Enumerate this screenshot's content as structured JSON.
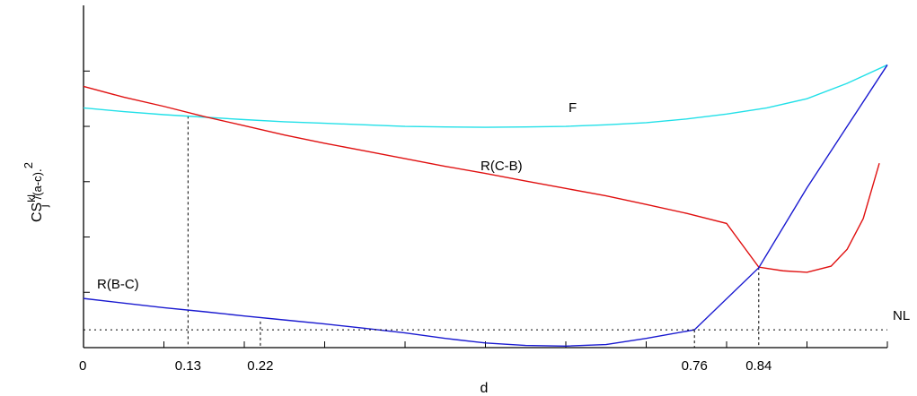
{
  "chart_data": {
    "type": "line",
    "title": "",
    "xlabel": "d",
    "ylabel": {
      "base": "CS",
      "superscript": "kl",
      "subscript": "j",
      "suffix": "/(a-c)",
      "exponent": "2",
      "dot": "."
    },
    "xlim": [
      0,
      1
    ],
    "ylim": [
      0,
      1
    ],
    "grid": false,
    "x_tick_positions": [
      0,
      0.1,
      0.2,
      0.3,
      0.4,
      0.5,
      0.6,
      0.7,
      0.8,
      0.9,
      1.0
    ],
    "x_tick_labels": [
      {
        "x": 0,
        "label": "0"
      },
      {
        "x": 0.13,
        "label": "0.13"
      },
      {
        "x": 0.22,
        "label": "0.22"
      },
      {
        "x": 0.76,
        "label": "0.76"
      },
      {
        "x": 0.84,
        "label": "0.84"
      }
    ],
    "y_tick_positions": [
      0.18,
      0.36,
      0.54,
      0.72,
      0.9
    ],
    "series": [
      {
        "name": "F",
        "color": "#22e0e8",
        "x": [
          0,
          0.05,
          0.1,
          0.15,
          0.2,
          0.25,
          0.3,
          0.35,
          0.4,
          0.45,
          0.5,
          0.55,
          0.6,
          0.65,
          0.7,
          0.75,
          0.8,
          0.85,
          0.9,
          0.95,
          1.0
        ],
        "y": [
          0.78,
          0.768,
          0.758,
          0.75,
          0.742,
          0.735,
          0.73,
          0.725,
          0.72,
          0.718,
          0.717,
          0.718,
          0.72,
          0.725,
          0.732,
          0.744,
          0.76,
          0.78,
          0.81,
          0.86,
          0.92
        ]
      },
      {
        "name": "R(C-B)",
        "color": "#e01010",
        "x": [
          0,
          0.05,
          0.1,
          0.15,
          0.2,
          0.25,
          0.3,
          0.35,
          0.4,
          0.45,
          0.5,
          0.55,
          0.6,
          0.65,
          0.7,
          0.75,
          0.8,
          0.84,
          0.87,
          0.9,
          0.93,
          0.95,
          0.97,
          0.99
        ],
        "y": [
          0.85,
          0.815,
          0.785,
          0.752,
          0.722,
          0.692,
          0.665,
          0.64,
          0.615,
          0.59,
          0.567,
          0.542,
          0.518,
          0.494,
          0.466,
          0.437,
          0.404,
          0.262,
          0.25,
          0.245,
          0.265,
          0.32,
          0.42,
          0.6
        ]
      },
      {
        "name": "R(B-C)",
        "color": "#1a1ad0",
        "x": [
          0,
          0.05,
          0.1,
          0.15,
          0.2,
          0.25,
          0.3,
          0.35,
          0.4,
          0.45,
          0.5,
          0.55,
          0.6,
          0.65,
          0.7,
          0.76,
          0.84,
          0.9,
          0.95,
          1.0
        ],
        "y": [
          0.16,
          0.145,
          0.13,
          0.117,
          0.103,
          0.09,
          0.077,
          0.063,
          0.048,
          0.03,
          0.015,
          0.007,
          0.005,
          0.01,
          0.03,
          0.058,
          0.26,
          0.52,
          0.72,
          0.92
        ]
      },
      {
        "name": "NL",
        "color": "#000000",
        "dashed": true,
        "x": [
          0,
          1.0
        ],
        "y": [
          0.058,
          0.058
        ]
      }
    ],
    "reference_lines": [
      {
        "x": 0.13,
        "y": 0.754
      },
      {
        "x": 0.22,
        "y": 0.085
      },
      {
        "x": 0.76,
        "y": 0.058
      },
      {
        "x": 0.84,
        "y": 0.262
      }
    ]
  }
}
